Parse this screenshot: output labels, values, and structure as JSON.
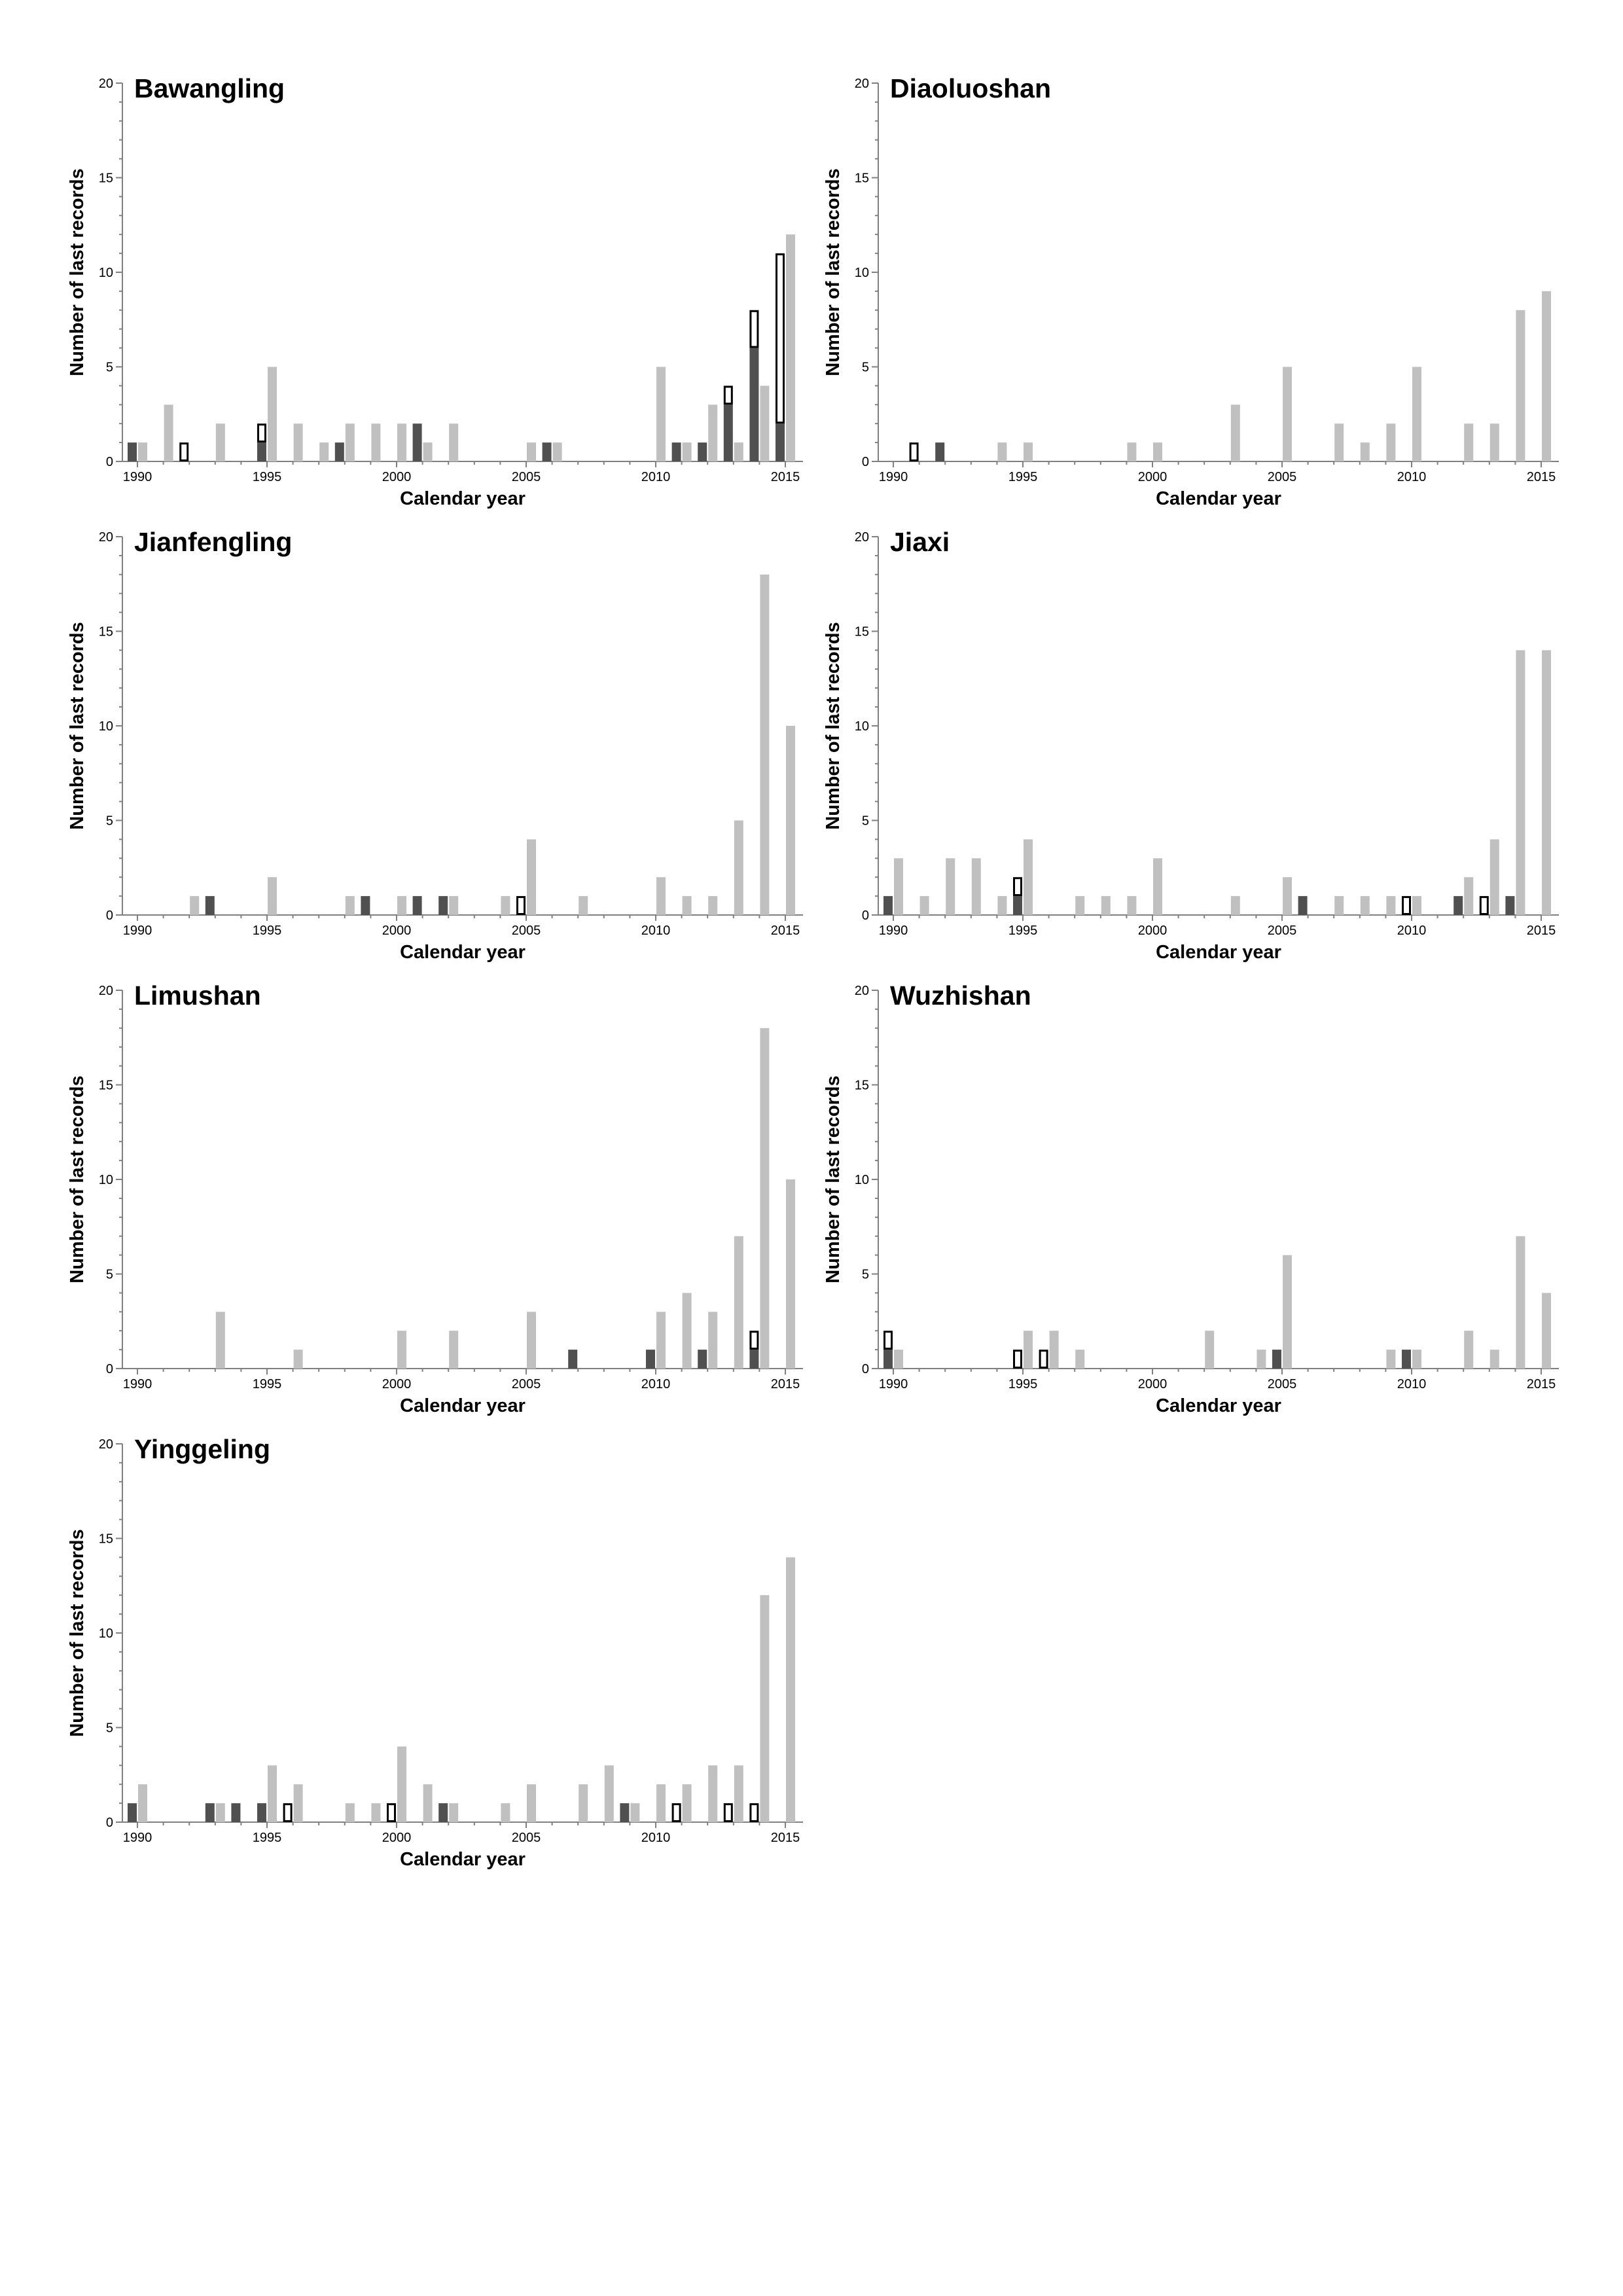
{
  "colors": {
    "light": "#c0c0c0",
    "dark": "#505050",
    "open_fill": "#ffffff",
    "open_stroke": "#000000",
    "axis": "#808080"
  },
  "chart_data": [
    {
      "type": "bar",
      "title": "Bawangling",
      "xlabel": "Calendar year",
      "ylabel": "Number of last records",
      "xlim": [
        1990,
        2015
      ],
      "ylim": [
        0,
        20
      ],
      "x_ticks": [
        1990,
        1995,
        2000,
        2005,
        2010,
        2015
      ],
      "y_ticks": [
        0,
        5,
        10,
        15,
        20
      ],
      "series": [
        {
          "style": "light",
          "points": [
            [
              1990,
              1
            ],
            [
              1991,
              3
            ],
            [
              1993,
              2
            ],
            [
              1995,
              5
            ],
            [
              1996,
              2
            ],
            [
              1997,
              1
            ],
            [
              1998,
              2
            ],
            [
              1999,
              2
            ],
            [
              2000,
              2
            ],
            [
              2001,
              1
            ],
            [
              2002,
              2
            ],
            [
              2005,
              1
            ],
            [
              2006,
              1
            ],
            [
              2010,
              5
            ],
            [
              2011,
              1
            ],
            [
              2012,
              3
            ],
            [
              2013,
              1
            ],
            [
              2014,
              4
            ],
            [
              2015,
              12
            ]
          ]
        },
        {
          "style": "stack",
          "points": [
            [
              1990,
              1,
              0
            ],
            [
              1992,
              0,
              1
            ],
            [
              1995,
              1,
              1
            ],
            [
              1998,
              1,
              0
            ],
            [
              2001,
              2,
              0
            ],
            [
              2006,
              1,
              0
            ],
            [
              2011,
              1,
              0
            ],
            [
              2012,
              1,
              0
            ],
            [
              2013,
              3,
              1
            ],
            [
              2014,
              6,
              2
            ],
            [
              2015,
              2,
              9
            ]
          ]
        }
      ]
    },
    {
      "type": "bar",
      "title": "Diaoluoshan",
      "xlabel": "Calendar year",
      "ylabel": "Number of last records",
      "xlim": [
        1990,
        2015
      ],
      "ylim": [
        0,
        20
      ],
      "x_ticks": [
        1990,
        1995,
        2000,
        2005,
        2010,
        2015
      ],
      "y_ticks": [
        0,
        5,
        10,
        15,
        20
      ],
      "series": [
        {
          "style": "light",
          "points": [
            [
              1994,
              1
            ],
            [
              1995,
              1
            ],
            [
              1999,
              1
            ],
            [
              2000,
              1
            ],
            [
              2003,
              3
            ],
            [
              2005,
              5
            ],
            [
              2007,
              2
            ],
            [
              2008,
              1
            ],
            [
              2009,
              2
            ],
            [
              2010,
              5
            ],
            [
              2012,
              2
            ],
            [
              2013,
              2
            ],
            [
              2014,
              8
            ],
            [
              2015,
              9
            ]
          ]
        },
        {
          "style": "stack",
          "points": [
            [
              1991,
              0,
              1
            ],
            [
              1992,
              1,
              0
            ]
          ]
        }
      ]
    },
    {
      "type": "bar",
      "title": "Jianfengling",
      "xlabel": "Calendar year",
      "ylabel": "Number of last records",
      "xlim": [
        1990,
        2015
      ],
      "ylim": [
        0,
        20
      ],
      "x_ticks": [
        1990,
        1995,
        2000,
        2005,
        2010,
        2015
      ],
      "y_ticks": [
        0,
        5,
        10,
        15,
        20
      ],
      "series": [
        {
          "style": "light",
          "points": [
            [
              1992,
              1
            ],
            [
              1995,
              2
            ],
            [
              1998,
              1
            ],
            [
              2000,
              1
            ],
            [
              2002,
              1
            ],
            [
              2004,
              1
            ],
            [
              2005,
              4
            ],
            [
              2007,
              1
            ],
            [
              2010,
              2
            ],
            [
              2011,
              1
            ],
            [
              2012,
              1
            ],
            [
              2013,
              5
            ],
            [
              2014,
              18
            ],
            [
              2015,
              10
            ]
          ]
        },
        {
          "style": "stack",
          "points": [
            [
              1993,
              1,
              0
            ],
            [
              1999,
              1,
              0
            ],
            [
              2001,
              1,
              0
            ],
            [
              2002,
              1,
              0
            ],
            [
              2005,
              0,
              1
            ]
          ]
        }
      ]
    },
    {
      "type": "bar",
      "title": "Jiaxi",
      "xlabel": "Calendar year",
      "ylabel": "Number of last records",
      "xlim": [
        1990,
        2015
      ],
      "ylim": [
        0,
        20
      ],
      "x_ticks": [
        1990,
        1995,
        2000,
        2005,
        2010,
        2015
      ],
      "y_ticks": [
        0,
        5,
        10,
        15,
        20
      ],
      "series": [
        {
          "style": "light",
          "points": [
            [
              1990,
              3
            ],
            [
              1991,
              1
            ],
            [
              1992,
              3
            ],
            [
              1993,
              3
            ],
            [
              1994,
              1
            ],
            [
              1995,
              4
            ],
            [
              1997,
              1
            ],
            [
              1998,
              1
            ],
            [
              1999,
              1
            ],
            [
              2000,
              3
            ],
            [
              2003,
              1
            ],
            [
              2005,
              2
            ],
            [
              2007,
              1
            ],
            [
              2008,
              1
            ],
            [
              2009,
              1
            ],
            [
              2010,
              1
            ],
            [
              2012,
              2
            ],
            [
              2013,
              4
            ],
            [
              2014,
              14
            ],
            [
              2015,
              14
            ]
          ]
        },
        {
          "style": "stack",
          "points": [
            [
              1990,
              1,
              0
            ],
            [
              1995,
              1,
              1
            ],
            [
              2006,
              1,
              0
            ],
            [
              2010,
              0,
              1
            ],
            [
              2012,
              1,
              0
            ],
            [
              2013,
              0,
              1
            ],
            [
              2014,
              1,
              0
            ]
          ]
        }
      ]
    },
    {
      "type": "bar",
      "title": "Limushan",
      "xlabel": "Calendar year",
      "ylabel": "Number of last records",
      "xlim": [
        1990,
        2015
      ],
      "ylim": [
        0,
        20
      ],
      "x_ticks": [
        1990,
        1995,
        2000,
        2005,
        2010,
        2015
      ],
      "y_ticks": [
        0,
        5,
        10,
        15,
        20
      ],
      "series": [
        {
          "style": "light",
          "points": [
            [
              1993,
              3
            ],
            [
              1996,
              1
            ],
            [
              2000,
              2
            ],
            [
              2002,
              2
            ],
            [
              2005,
              3
            ],
            [
              2010,
              3
            ],
            [
              2011,
              4
            ],
            [
              2012,
              3
            ],
            [
              2013,
              7
            ],
            [
              2014,
              18
            ],
            [
              2015,
              10
            ]
          ]
        },
        {
          "style": "stack",
          "points": [
            [
              2007,
              1,
              0
            ],
            [
              2010,
              1,
              0
            ],
            [
              2012,
              1,
              0
            ],
            [
              2014,
              1,
              1
            ]
          ]
        }
      ]
    },
    {
      "type": "bar",
      "title": "Wuzhishan",
      "xlabel": "Calendar year",
      "ylabel": "Number of last records",
      "xlim": [
        1990,
        2015
      ],
      "ylim": [
        0,
        20
      ],
      "x_ticks": [
        1990,
        1995,
        2000,
        2005,
        2010,
        2015
      ],
      "y_ticks": [
        0,
        5,
        10,
        15,
        20
      ],
      "series": [
        {
          "style": "light",
          "points": [
            [
              1990,
              1
            ],
            [
              1995,
              2
            ],
            [
              1996,
              2
            ],
            [
              1997,
              1
            ],
            [
              2002,
              2
            ],
            [
              2004,
              1
            ],
            [
              2005,
              6
            ],
            [
              2009,
              1
            ],
            [
              2010,
              1
            ],
            [
              2012,
              2
            ],
            [
              2013,
              1
            ],
            [
              2014,
              7
            ],
            [
              2015,
              4
            ]
          ]
        },
        {
          "style": "stack",
          "points": [
            [
              1990,
              1,
              1
            ],
            [
              1995,
              0,
              1
            ],
            [
              1996,
              0,
              1
            ],
            [
              2005,
              1,
              0
            ],
            [
              2010,
              1,
              0
            ]
          ]
        }
      ]
    },
    {
      "type": "bar",
      "title": "Yinggeling",
      "xlabel": "Calendar year",
      "ylabel": "Number of last records",
      "xlim": [
        1990,
        2015
      ],
      "ylim": [
        0,
        20
      ],
      "x_ticks": [
        1990,
        1995,
        2000,
        2005,
        2010,
        2015
      ],
      "y_ticks": [
        0,
        5,
        10,
        15,
        20
      ],
      "series": [
        {
          "style": "light",
          "points": [
            [
              1990,
              2
            ],
            [
              1993,
              1
            ],
            [
              1995,
              3
            ],
            [
              1996,
              2
            ],
            [
              1998,
              1
            ],
            [
              1999,
              1
            ],
            [
              2000,
              4
            ],
            [
              2001,
              2
            ],
            [
              2002,
              1
            ],
            [
              2004,
              1
            ],
            [
              2005,
              2
            ],
            [
              2007,
              2
            ],
            [
              2008,
              3
            ],
            [
              2009,
              1
            ],
            [
              2010,
              2
            ],
            [
              2011,
              2
            ],
            [
              2012,
              3
            ],
            [
              2013,
              3
            ],
            [
              2014,
              12
            ],
            [
              2015,
              14
            ]
          ]
        },
        {
          "style": "stack",
          "points": [
            [
              1990,
              1,
              0
            ],
            [
              1993,
              1,
              0
            ],
            [
              1994,
              1,
              0
            ],
            [
              1995,
              1,
              0
            ],
            [
              1996,
              0,
              1
            ],
            [
              2000,
              0,
              1
            ],
            [
              2002,
              1,
              0
            ],
            [
              2009,
              1,
              0
            ],
            [
              2011,
              0,
              1
            ],
            [
              2013,
              0,
              1
            ],
            [
              2014,
              0,
              1
            ]
          ]
        }
      ]
    }
  ]
}
